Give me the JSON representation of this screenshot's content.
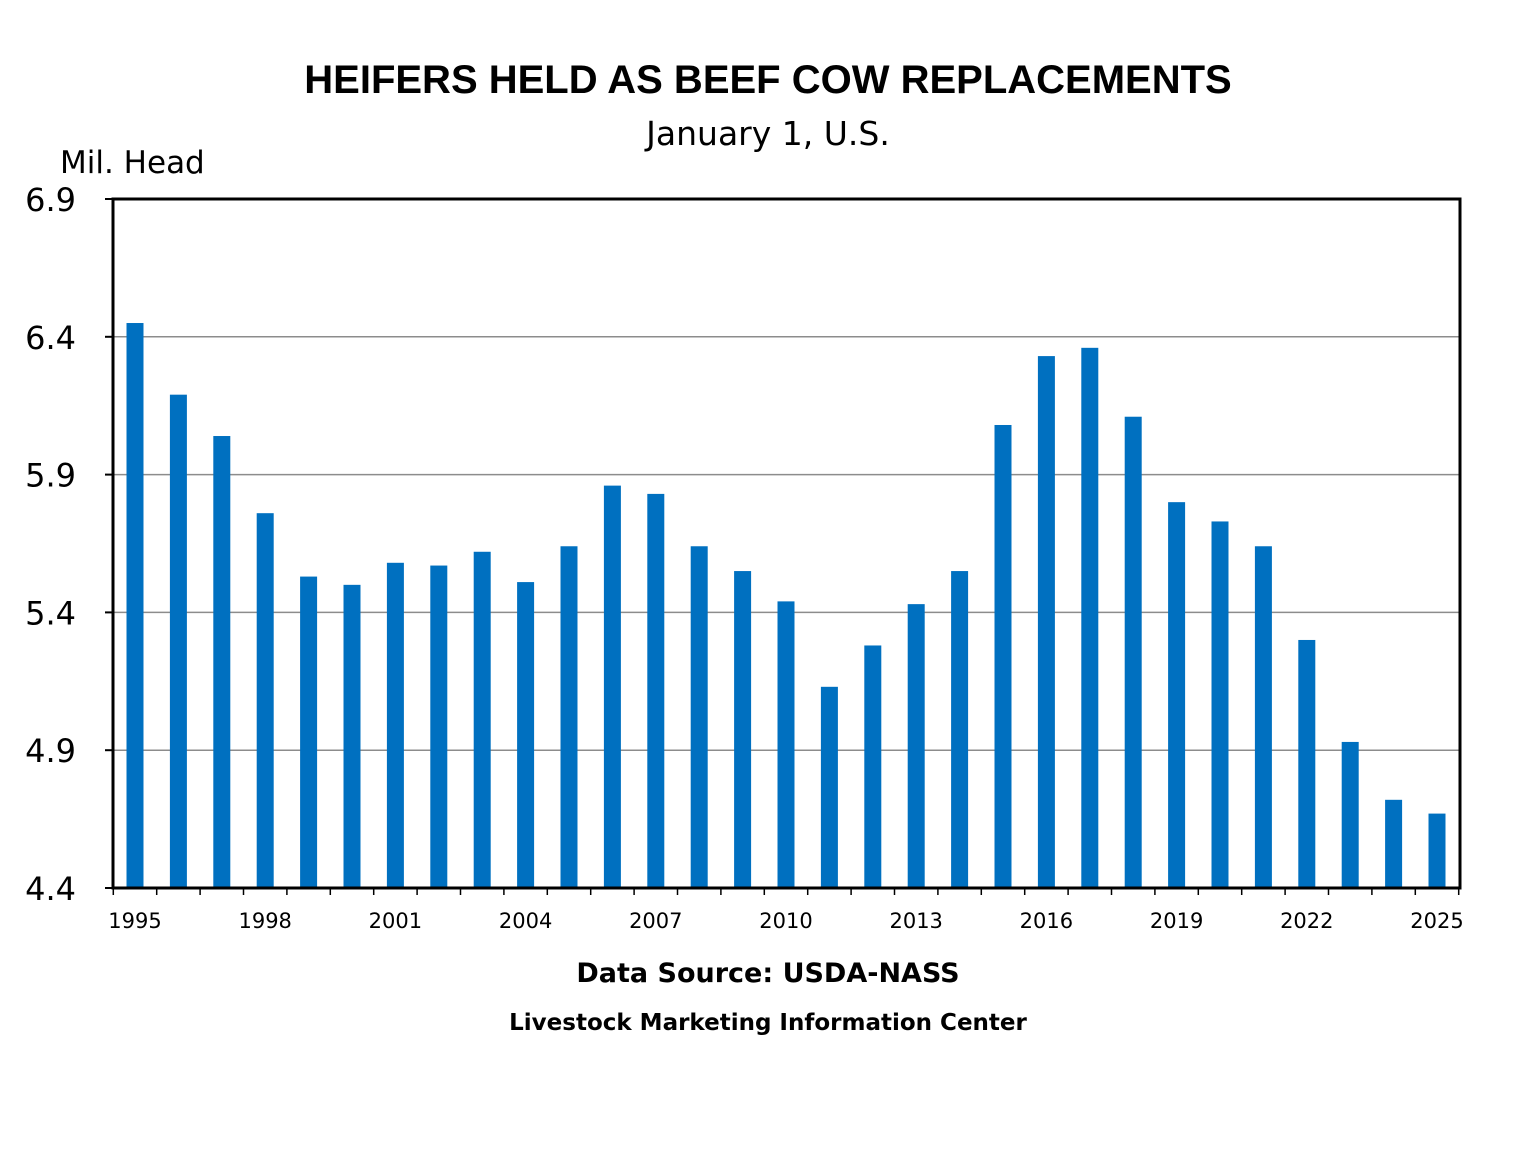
{
  "chart_data": {
    "type": "bar",
    "title": "HEIFERS HELD AS BEEF COW REPLACEMENTS",
    "subtitle": "January 1, U.S.",
    "ylabel": "Mil. Head",
    "xlabel": "",
    "ylim": [
      4.4,
      6.9
    ],
    "yticks": [
      "4.4",
      "4.9",
      "5.4",
      "5.9",
      "6.4",
      "6.9"
    ],
    "grid": true,
    "bar_color": "#0070C0",
    "categories": [
      1995,
      1996,
      1997,
      1998,
      1999,
      2000,
      2001,
      2002,
      2003,
      2004,
      2005,
      2006,
      2007,
      2008,
      2009,
      2010,
      2011,
      2012,
      2013,
      2014,
      2015,
      2016,
      2017,
      2018,
      2019,
      2020,
      2021,
      2022,
      2023,
      2024,
      2025
    ],
    "xtick_labels": [
      "1995",
      "1998",
      "2001",
      "2004",
      "2007",
      "2010",
      "2013",
      "2016",
      "2019",
      "2022",
      "2025"
    ],
    "values": [
      6.45,
      6.19,
      6.04,
      5.76,
      5.53,
      5.5,
      5.58,
      5.57,
      5.62,
      5.51,
      5.64,
      5.86,
      5.83,
      5.64,
      5.55,
      5.44,
      5.13,
      5.28,
      5.43,
      5.55,
      6.08,
      6.33,
      6.36,
      6.11,
      5.8,
      5.73,
      5.64,
      5.3,
      4.93,
      4.72,
      4.67
    ]
  },
  "footer": {
    "source": "Data Source:  USDA-NASS",
    "organization": "Livestock Marketing Information Center"
  }
}
